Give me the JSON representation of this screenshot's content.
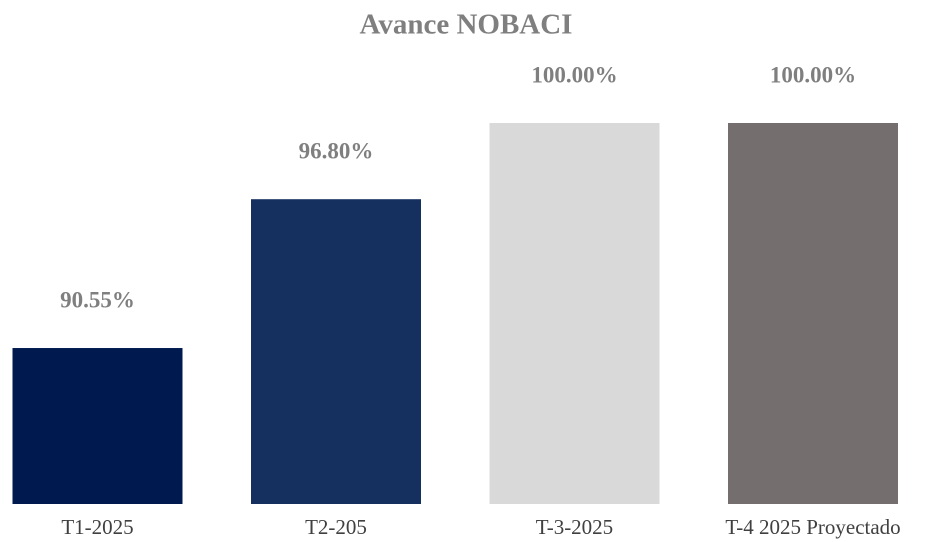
{
  "chart_data": {
    "type": "bar",
    "title": "Avance NOBACI",
    "categories": [
      "T1-2025",
      "T2-205",
      "T-3-2025",
      "T-4 2025 Proyectado"
    ],
    "values": [
      90.55,
      96.8,
      100,
      100
    ],
    "value_labels": [
      "90.55%",
      "96.80%",
      "100.00%",
      "100.00%"
    ],
    "colors": [
      "#001a4f",
      "#152f5e",
      "#d9d9d9",
      "#746f6e"
    ],
    "ylim": [
      84,
      100
    ]
  }
}
